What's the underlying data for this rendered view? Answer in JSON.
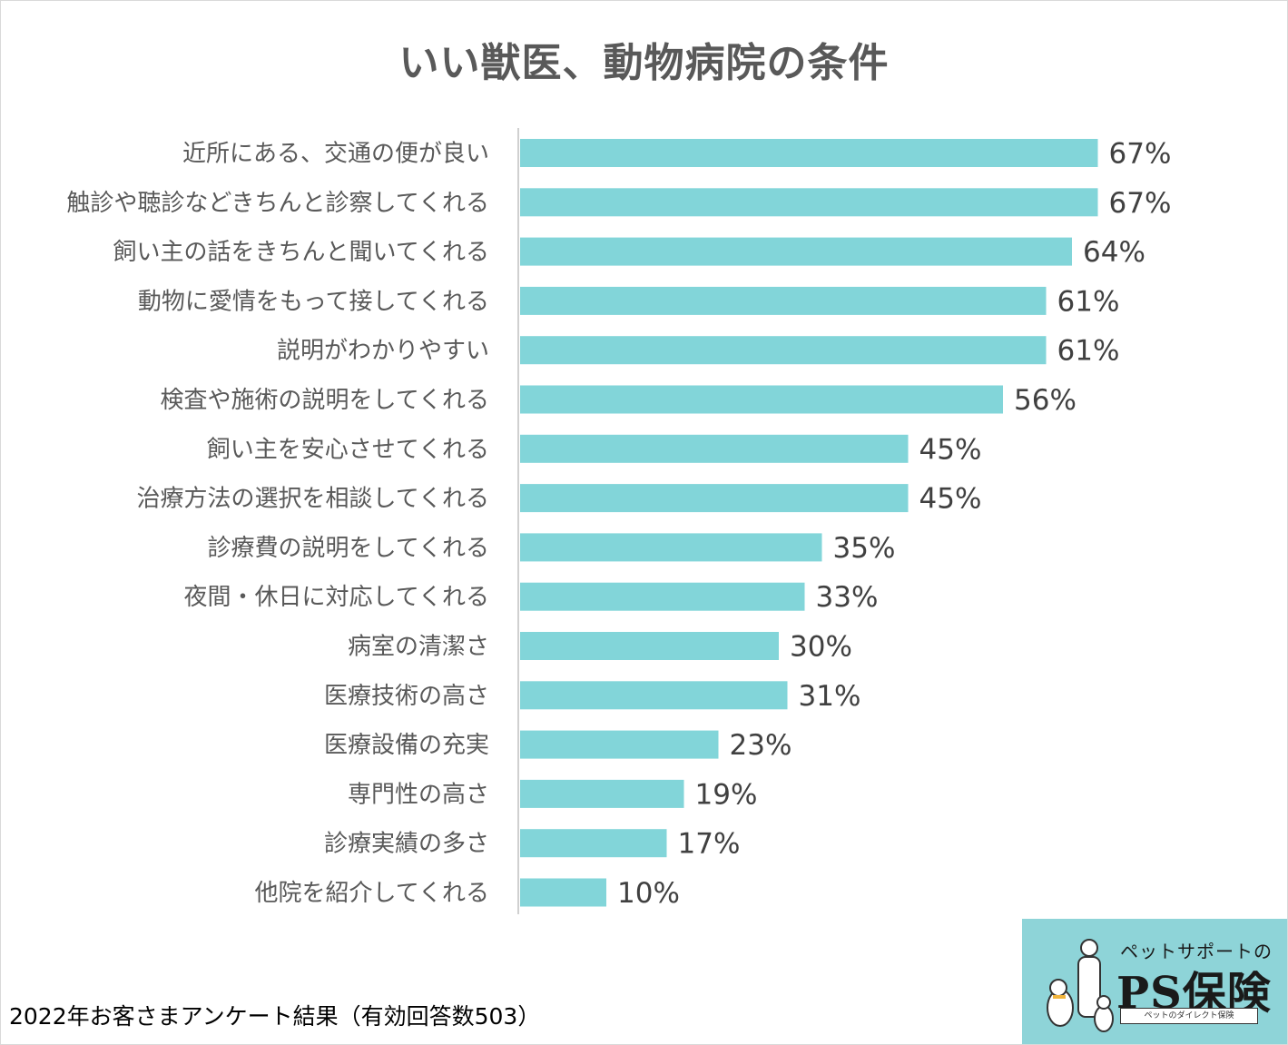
{
  "chart_data": {
    "type": "bar",
    "orientation": "horizontal",
    "title": "いい獣医、動物病院の条件",
    "categories": [
      "近所にある、交通の便が良い",
      "触診や聴診などきちんと診察してくれる",
      "飼い主の話をきちんと聞いてくれる",
      "動物に愛情をもって接してくれる",
      "説明がわかりやすい",
      "検査や施術の説明をしてくれる",
      "飼い主を安心させてくれる",
      "治療方法の選択を相談してくれる",
      "診療費の説明をしてくれる",
      "夜間・休日に対応してくれる",
      "病室の清潔さ",
      "医療技術の高さ",
      "医療設備の充実",
      "専門性の高さ",
      "診療実績の多さ",
      "他院を紹介してくれる"
    ],
    "values": [
      67,
      67,
      64,
      61,
      61,
      56,
      45,
      45,
      35,
      33,
      30,
      31,
      23,
      19,
      17,
      10
    ],
    "value_labels": [
      "67%",
      "67%",
      "64%",
      "61%",
      "61%",
      "56%",
      "45%",
      "45%",
      "35%",
      "33%",
      "30%",
      "31%",
      "23%",
      "19%",
      "17%",
      "10%"
    ],
    "unit": "%",
    "bar_color": "#82d5d9",
    "grid": false,
    "legend": "none"
  },
  "footnote": "2022年お客さまアンケート結果（有効回答数503）",
  "logo": {
    "subtitle": "ペットサポートの",
    "name": "PS保険",
    "tagline": "ペットのダイレクト保険",
    "background": "#8ed4d8"
  }
}
